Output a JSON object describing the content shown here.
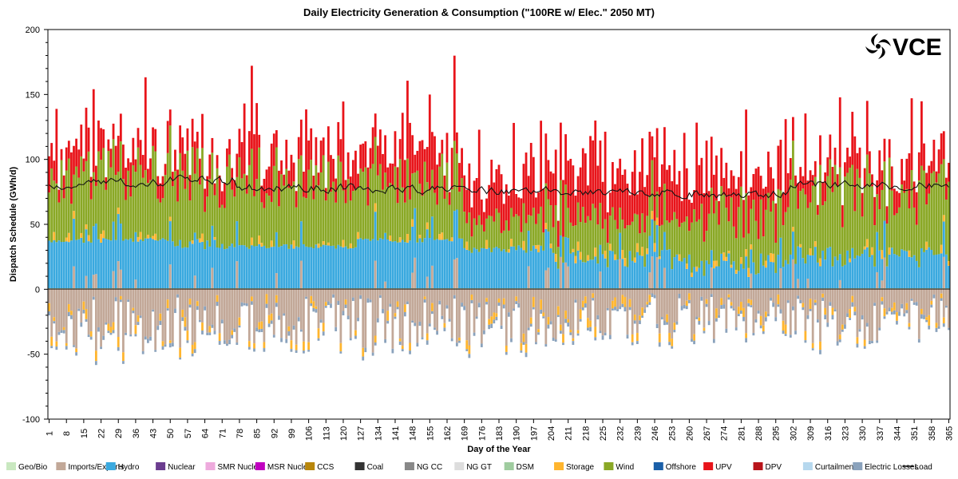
{
  "chart_data": {
    "type": "bar",
    "stacked": true,
    "title": "Daily Electricity Generation & Consumption (\"100RE w/ Elec.\" 2050 MT)",
    "xlabel": "Day of the Year",
    "ylabel": "Dispatch Schedule (GWh/d)",
    "ylim": [
      -100,
      200
    ],
    "xlim": [
      1,
      365
    ],
    "yticks": [
      -100,
      -50,
      0,
      50,
      100,
      150,
      200
    ],
    "xticks": [
      1,
      8,
      15,
      22,
      29,
      36,
      43,
      50,
      57,
      64,
      71,
      78,
      85,
      92,
      99,
      106,
      113,
      120,
      127,
      134,
      141,
      148,
      155,
      162,
      169,
      176,
      183,
      190,
      197,
      204,
      211,
      218,
      225,
      232,
      239,
      246,
      253,
      260,
      267,
      274,
      281,
      288,
      295,
      302,
      309,
      316,
      323,
      330,
      337,
      344,
      351,
      358,
      365
    ],
    "grid": false,
    "legend_position": "bottom",
    "logo": "VCE",
    "series": [
      {
        "name": "Geo/Bio",
        "color": "#c9e8c0"
      },
      {
        "name": "Imports/Exports",
        "color": "#c2a898"
      },
      {
        "name": "Hydro",
        "color": "#3aa9df"
      },
      {
        "name": "Nuclear",
        "color": "#6b3d8f"
      },
      {
        "name": "SMR Nuclear",
        "color": "#eeaadd"
      },
      {
        "name": "MSR Nuclear",
        "color": "#c000c0"
      },
      {
        "name": "CCS",
        "color": "#b8860b"
      },
      {
        "name": "Coal",
        "color": "#333333"
      },
      {
        "name": "NG CC",
        "color": "#888888"
      },
      {
        "name": "NG GT",
        "color": "#dddddd"
      },
      {
        "name": "DSM",
        "color": "#9fcc9f"
      },
      {
        "name": "Storage",
        "color": "#ffb52e"
      },
      {
        "name": "Wind",
        "color": "#8aa826"
      },
      {
        "name": "Offshore",
        "color": "#1a5fa8"
      },
      {
        "name": "UPV",
        "color": "#e8141a"
      },
      {
        "name": "DPV",
        "color": "#b8141a"
      },
      {
        "name": "Curtailment",
        "color": "#b6d8ee"
      },
      {
        "name": "Electric Losses",
        "color": "#8aa2bc"
      },
      {
        "name": "Load",
        "color": "#111111",
        "kind": "line"
      }
    ],
    "segments": [
      {
        "from": 1,
        "to": 10,
        "hydro": 36,
        "hydro_var": 2,
        "wind": 45,
        "upv": 20,
        "load": 78,
        "neg": 35
      },
      {
        "from": 11,
        "to": 48,
        "hydro": 37,
        "hydro_var": 2,
        "wind": 50,
        "upv": 20,
        "load": 82,
        "neg": 38
      },
      {
        "from": 49,
        "to": 75,
        "hydro": 34,
        "hydro_var": 4,
        "wind": 52,
        "upv": 20,
        "load": 84,
        "neg": 35
      },
      {
        "from": 76,
        "to": 125,
        "hydro": 32,
        "hydro_var": 2,
        "wind": 48,
        "upv": 21,
        "load": 78,
        "neg": 34
      },
      {
        "from": 126,
        "to": 168,
        "hydro": 37,
        "hydro_var": 2,
        "wind": 45,
        "upv": 24,
        "load": 77,
        "neg": 38
      },
      {
        "from": 169,
        "to": 205,
        "hydro": 30,
        "hydro_var": 3,
        "wind": 22,
        "upv": 32,
        "load": 76,
        "neg": 34
      },
      {
        "from": 206,
        "to": 260,
        "hydro": 22,
        "hydro_var": 8,
        "wind": 30,
        "upv": 36,
        "load": 74,
        "neg": 30
      },
      {
        "from": 261,
        "to": 300,
        "hydro": 18,
        "hydro_var": 10,
        "wind": 38,
        "upv": 30,
        "load": 73,
        "neg": 30
      },
      {
        "from": 301,
        "to": 365,
        "hydro": 24,
        "hydro_var": 8,
        "wind": 50,
        "upv": 18,
        "load": 80,
        "neg": 32
      }
    ]
  },
  "legend": [
    {
      "label": "Geo/Bio",
      "color": "#c9e8c0"
    },
    {
      "label": "Imports/Exports",
      "color": "#c2a898"
    },
    {
      "label": "Hydro",
      "color": "#3aa9df"
    },
    {
      "label": "Nuclear",
      "color": "#6b3d8f"
    },
    {
      "label": "SMR Nuclear",
      "color": "#eeaadd"
    },
    {
      "label": "MSR Nuclear",
      "color": "#c000c0"
    },
    {
      "label": "CCS",
      "color": "#b8860b"
    },
    {
      "label": "Coal",
      "color": "#333333"
    },
    {
      "label": "NG CC",
      "color": "#888888"
    },
    {
      "label": "NG GT",
      "color": "#dddddd"
    },
    {
      "label": "DSM",
      "color": "#9fcc9f"
    },
    {
      "label": "Storage",
      "color": "#ffb52e"
    },
    {
      "label": "Wind",
      "color": "#8aa826"
    },
    {
      "label": "Offshore",
      "color": "#1a5fa8"
    },
    {
      "label": "UPV",
      "color": "#e8141a"
    },
    {
      "label": "DPV",
      "color": "#b8141a"
    },
    {
      "label": "Curtailment",
      "color": "#b6d8ee"
    },
    {
      "label": "Electric Losses",
      "color": "#8aa2bc"
    },
    {
      "label": "Load",
      "color": "#111111"
    }
  ]
}
